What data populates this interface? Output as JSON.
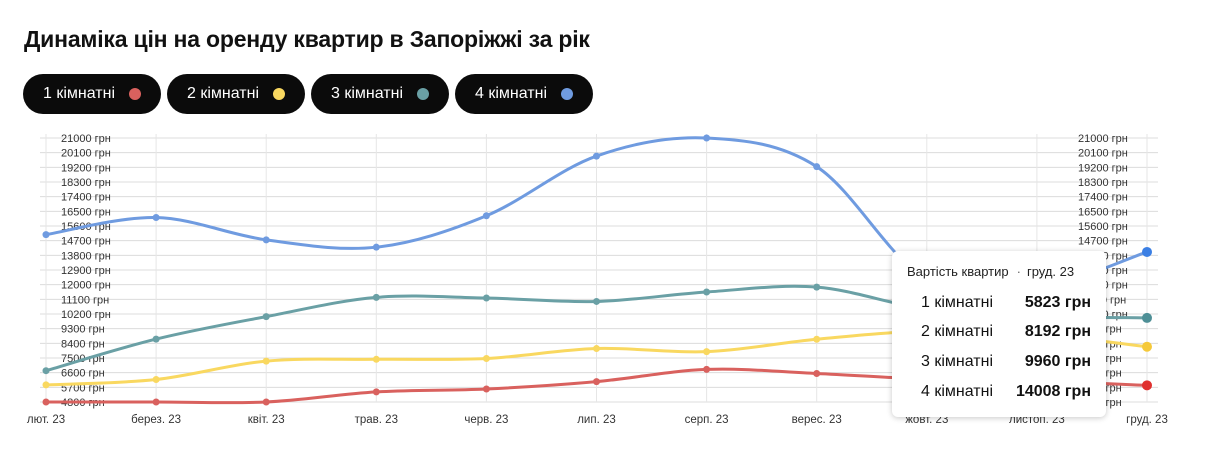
{
  "title": "Динаміка цін на оренду квартир в Запоріжжі за рік",
  "legend": [
    {
      "label": "1 кімнатні",
      "color": "#d9615e"
    },
    {
      "label": "2 кімнатні",
      "color": "#f9d860"
    },
    {
      "label": "3 кімнатні",
      "color": "#6aa0a5"
    },
    {
      "label": "4 кімнатні",
      "color": "#6f9be0"
    }
  ],
  "tooltip": {
    "title": "Вартість квартир",
    "period": "груд. 23",
    "rows": [
      {
        "label": "1 кімнатні",
        "value": "5823 грн"
      },
      {
        "label": "2 кімнатні",
        "value": "8192 грн"
      },
      {
        "label": "3 кімнатні",
        "value": "9960 грн"
      },
      {
        "label": "4 кімнатні",
        "value": "14008 грн"
      }
    ]
  },
  "chart_data": {
    "type": "line",
    "title": "Динаміка цін на оренду квартир в Запоріжжі за рік",
    "categories": [
      "лют. 23",
      "берез. 23",
      "квіт. 23",
      "трав. 23",
      "черв. 23",
      "лип. 23",
      "серп. 23",
      "верес. 23",
      "жовт. 23",
      "листоп. 23",
      "груд. 23"
    ],
    "y_tick_labels": [
      "21000 грн",
      "20100 грн",
      "19200 грн",
      "18300 грн",
      "17400 грн",
      "16500 грн",
      "15600 грн",
      "14700 грн",
      "13800 грн",
      "12900 грн",
      "12000 грн",
      "11100 грн",
      "10200 грн",
      "9300 грн",
      "8400 грн",
      "7500 грн",
      "6600 грн",
      "5700 грн",
      "4800 грн"
    ],
    "ylim": [
      4800,
      21000
    ],
    "grid": true,
    "legend_position": "top-left",
    "series": [
      {
        "name": "1 кімнатні",
        "color": "#d9615e",
        "values": [
          4800,
          4800,
          4800,
          5420,
          5600,
          6050,
          6800,
          6550,
          6200,
          6080,
          5823
        ]
      },
      {
        "name": "2 кімнатні",
        "color": "#f9d860",
        "values": [
          5850,
          6180,
          7310,
          7420,
          7470,
          8080,
          7890,
          8650,
          9150,
          8960,
          8192
        ]
      },
      {
        "name": "3 кімнатні",
        "color": "#6aa0a5",
        "values": [
          6720,
          8660,
          10040,
          11220,
          11180,
          10970,
          11550,
          11850,
          10500,
          10080,
          9960
        ]
      },
      {
        "name": "4 кімнатні",
        "color": "#6f9be0",
        "values": [
          15070,
          16120,
          14750,
          14300,
          16230,
          19890,
          21000,
          19240,
          12300,
          11800,
          14008
        ]
      }
    ]
  }
}
